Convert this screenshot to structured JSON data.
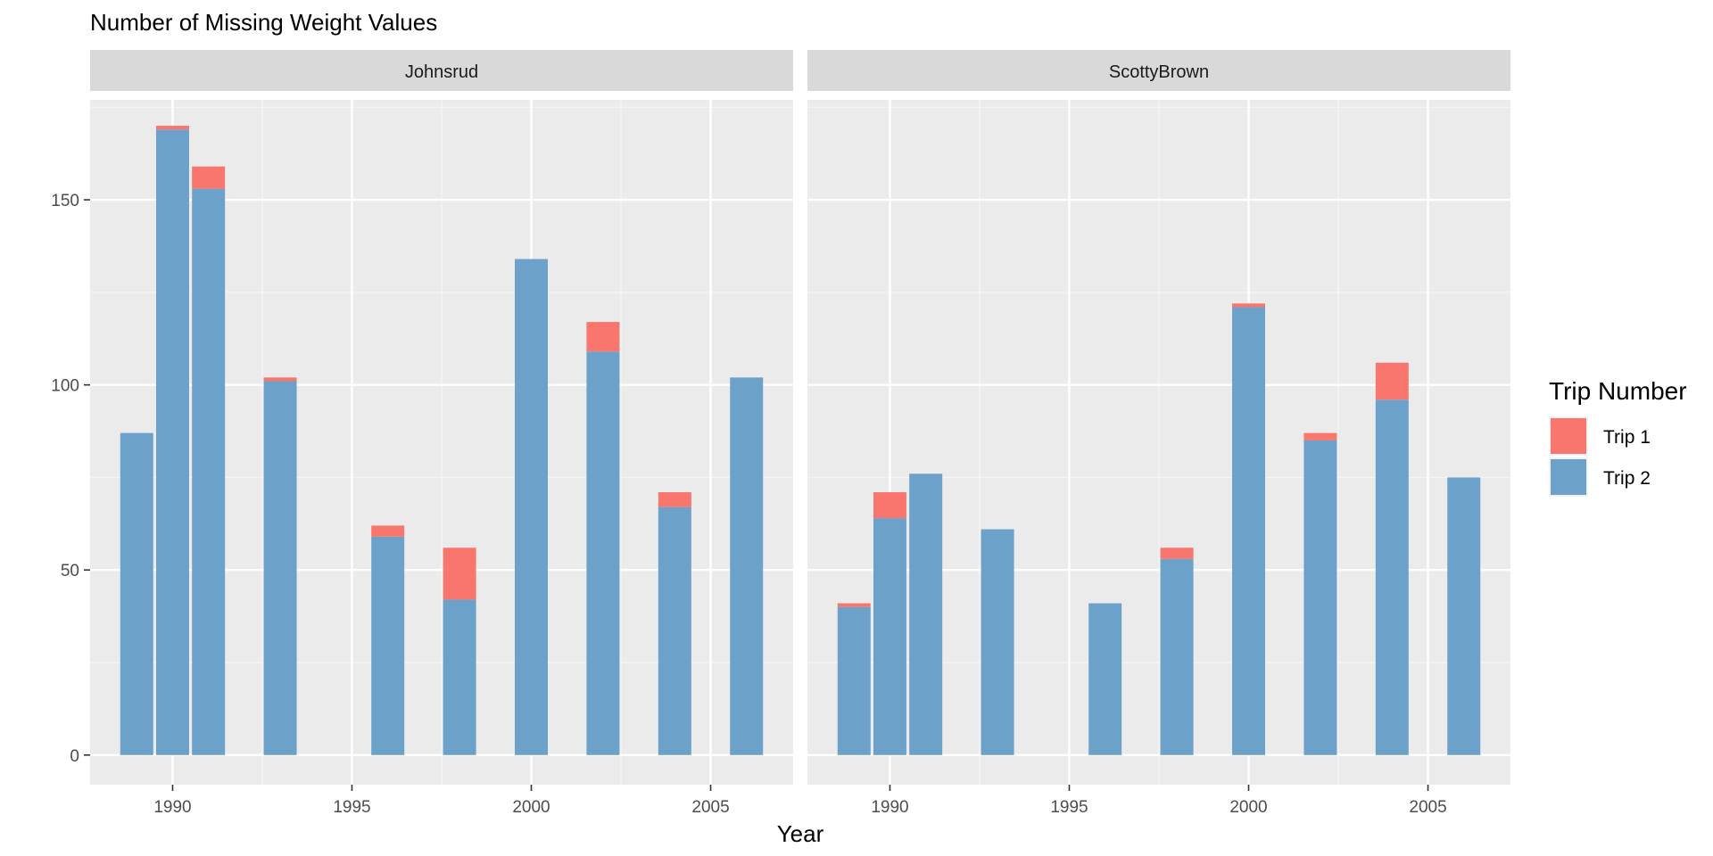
{
  "chart_data": {
    "type": "bar",
    "stacked": true,
    "title": "Number of Missing Weight Values",
    "xlabel": "Year",
    "ylabel": "",
    "ylim": [
      -8,
      177
    ],
    "xlim": [
      1987.7,
      2007.3
    ],
    "x_ticks": [
      1990,
      1995,
      2000,
      2005
    ],
    "x_tick_labels": [
      "1990",
      "1995",
      "2000",
      "2005"
    ],
    "y_ticks": [
      0,
      50,
      100,
      150
    ],
    "y_tick_labels": [
      "0",
      "50",
      "100",
      "150"
    ],
    "legend": {
      "title": "Trip Number",
      "position": "right",
      "entries": [
        {
          "name": "Trip 1",
          "color": "#F8766D"
        },
        {
          "name": "Trip 2",
          "color": "#6CA2CA"
        }
      ]
    },
    "facets": [
      {
        "name": "Johnsrud",
        "years": [
          1989,
          1990,
          1991,
          1993,
          1996,
          1998,
          2000,
          2002,
          2004,
          2006
        ],
        "series": [
          {
            "name": "Trip 2",
            "values": [
              87,
              169,
              153,
              101,
              59,
              42,
              134,
              109,
              67,
              102
            ]
          },
          {
            "name": "Trip 1",
            "values": [
              0,
              1,
              6,
              1,
              3,
              14,
              0,
              8,
              4,
              0
            ]
          }
        ]
      },
      {
        "name": "ScottyBrown",
        "years": [
          1989,
          1990,
          1991,
          1993,
          1996,
          1998,
          2000,
          2002,
          2004,
          2006
        ],
        "series": [
          {
            "name": "Trip 2",
            "values": [
              40,
              64,
              76,
              61,
              41,
              53,
              121,
              85,
              96,
              75
            ]
          },
          {
            "name": "Trip 1",
            "values": [
              1,
              7,
              0,
              0,
              0,
              3,
              1,
              2,
              10,
              0
            ]
          }
        ]
      }
    ]
  }
}
